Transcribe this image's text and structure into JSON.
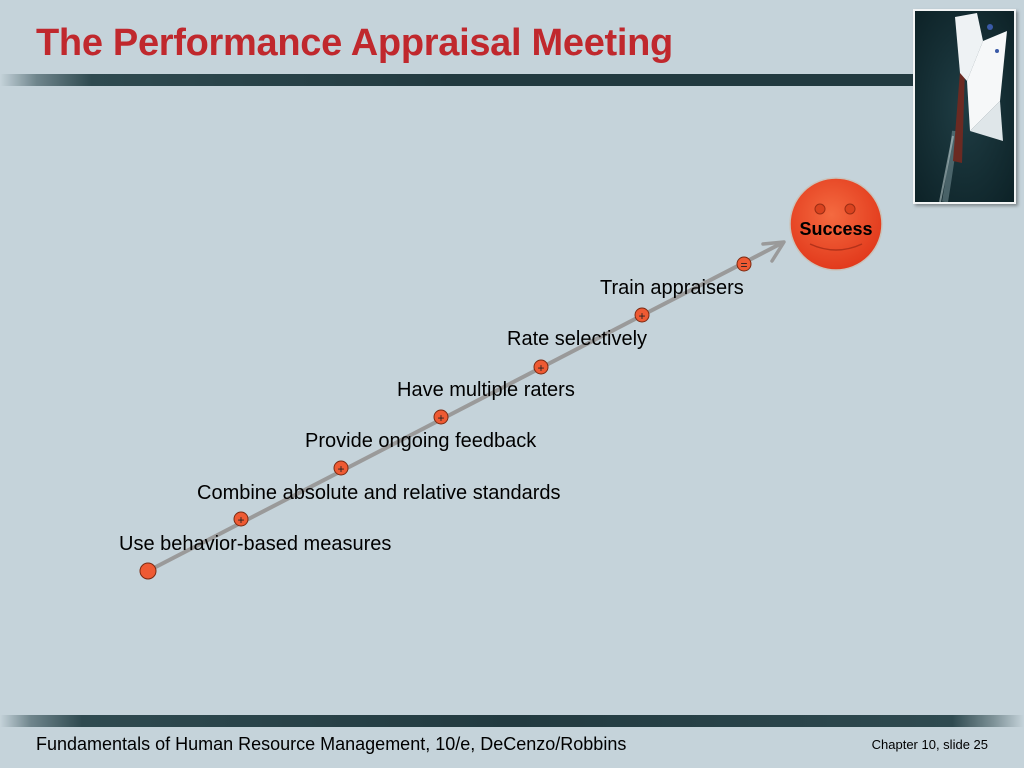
{
  "slide": {
    "title": "The Performance Appraisal Meeting"
  },
  "diagram": {
    "steps": [
      {
        "label": "Use behavior-based measures",
        "marker": ""
      },
      {
        "label": "Combine absolute and relative standards",
        "marker": "+"
      },
      {
        "label": "Provide ongoing feedback",
        "marker": "+"
      },
      {
        "label": "Have multiple raters",
        "marker": "+"
      },
      {
        "label": "Rate selectively",
        "marker": "+"
      },
      {
        "label": "Train appraisers",
        "marker": "+"
      }
    ],
    "result_marker": "=",
    "result_label": "Success"
  },
  "footer": {
    "book": "Fundamentals of Human Resource Management, 10/e, DeCenzo/Robbins",
    "slide_number": "Chapter 10, slide 25"
  },
  "colors": {
    "background": "#c5d3da",
    "title": "#c0282d",
    "marker_fill": "#ee5a33",
    "arrow": "#9a9a9a",
    "smiley_fill": "#f04a28"
  },
  "icons": {
    "photo": "sailboat-photo",
    "result": "smiley-face-icon"
  }
}
